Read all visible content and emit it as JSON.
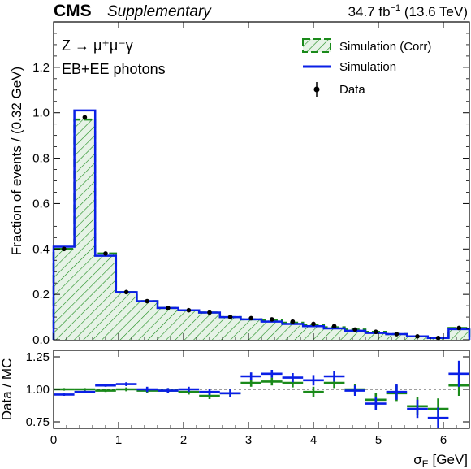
{
  "header": {
    "experiment": "CMS",
    "label": "Supplementary",
    "lumi_value": "34.7 fb",
    "lumi_exp": "−1",
    "energy": "(13.6 TeV)"
  },
  "annotations": {
    "process": "Z → μ⁺μ⁻γ",
    "category": "EB+EE photons"
  },
  "legend": {
    "sim_corr": "Simulation (Corr)",
    "sim": "Simulation",
    "data": "Data"
  },
  "colors": {
    "sim_corr": "#1a8a1a",
    "sim": "#0a1fe6",
    "data": "#000000",
    "hatch_fill": "#e6f3e6"
  },
  "chart_data": [
    {
      "type": "bar",
      "panel": "main",
      "histtype": "step",
      "bin_edges": [
        0,
        0.32,
        0.64,
        0.96,
        1.28,
        1.6,
        1.92,
        2.24,
        2.56,
        2.88,
        3.2,
        3.52,
        3.84,
        4.16,
        4.48,
        4.8,
        5.12,
        5.44,
        5.76,
        6.08,
        6.4
      ],
      "series": [
        {
          "name": "Simulation (Corr)",
          "style": "hatched",
          "values": [
            0.4,
            0.97,
            0.38,
            0.21,
            0.17,
            0.14,
            0.13,
            0.12,
            0.1,
            0.09,
            0.085,
            0.075,
            0.065,
            0.055,
            0.045,
            0.035,
            0.025,
            0.015,
            0.01,
            0.052
          ]
        },
        {
          "name": "Simulation",
          "style": "line",
          "values": [
            0.41,
            1.01,
            0.37,
            0.21,
            0.17,
            0.14,
            0.13,
            0.12,
            0.1,
            0.09,
            0.08,
            0.07,
            0.06,
            0.05,
            0.04,
            0.03,
            0.025,
            0.015,
            0.008,
            0.047
          ]
        },
        {
          "name": "Data",
          "style": "points",
          "values": [
            0.4,
            0.98,
            0.38,
            0.21,
            0.17,
            0.14,
            0.13,
            0.12,
            0.1,
            0.095,
            0.09,
            0.08,
            0.07,
            0.06,
            0.045,
            0.035,
            0.025,
            0.015,
            0.008,
            0.052
          ]
        }
      ],
      "title": "",
      "xlabel": "",
      "ylabel": "Fraction of events / (0.32 GeV)",
      "xlim": [
        0,
        6.4
      ],
      "ylim": [
        0,
        1.4
      ],
      "yticks": [
        "0.0",
        "0.2",
        "0.4",
        "0.6",
        "0.8",
        "1.0",
        "1.2"
      ],
      "legend_position": "top-right"
    },
    {
      "type": "scatter",
      "panel": "ratio",
      "bin_edges": [
        0,
        0.32,
        0.64,
        0.96,
        1.28,
        1.6,
        1.92,
        2.24,
        2.56,
        2.88,
        3.2,
        3.52,
        3.84,
        4.16,
        4.48,
        4.8,
        5.12,
        5.44,
        5.76,
        6.08,
        6.4
      ],
      "series": [
        {
          "name": "Data / Simulation (Corr)",
          "values": [
            1.0,
            1.0,
            0.99,
            1.0,
            0.99,
            0.99,
            0.98,
            0.95,
            0.97,
            1.05,
            1.06,
            1.05,
            0.98,
            1.05,
            1.0,
            0.92,
            0.97,
            0.87,
            0.85,
            1.03
          ],
          "errors": [
            0.01,
            0.01,
            0.01,
            0.015,
            0.02,
            0.02,
            0.02,
            0.025,
            0.03,
            0.03,
            0.03,
            0.035,
            0.04,
            0.04,
            0.04,
            0.05,
            0.06,
            0.07,
            0.08,
            0.08
          ]
        },
        {
          "name": "Data / Simulation",
          "values": [
            0.96,
            0.98,
            1.03,
            1.04,
            1.0,
            0.99,
            1.0,
            0.98,
            0.97,
            1.1,
            1.12,
            1.09,
            1.07,
            1.1,
            0.99,
            0.89,
            0.98,
            0.85,
            0.78,
            1.12
          ],
          "errors": [
            0.01,
            0.01,
            0.01,
            0.015,
            0.02,
            0.02,
            0.02,
            0.025,
            0.03,
            0.03,
            0.03,
            0.035,
            0.04,
            0.04,
            0.04,
            0.05,
            0.06,
            0.07,
            0.08,
            0.1
          ]
        }
      ],
      "reference_line": 1.0,
      "xlabel": "σE [GeV]",
      "xlabel_sub": "E",
      "ylabel": "Data / MC",
      "xlim": [
        0,
        6.4
      ],
      "ylim": [
        0.7,
        1.3
      ],
      "yticks": [
        "0.75",
        "1.00",
        "1.25"
      ],
      "xticks": [
        "0",
        "1",
        "2",
        "3",
        "4",
        "5",
        "6"
      ]
    }
  ]
}
